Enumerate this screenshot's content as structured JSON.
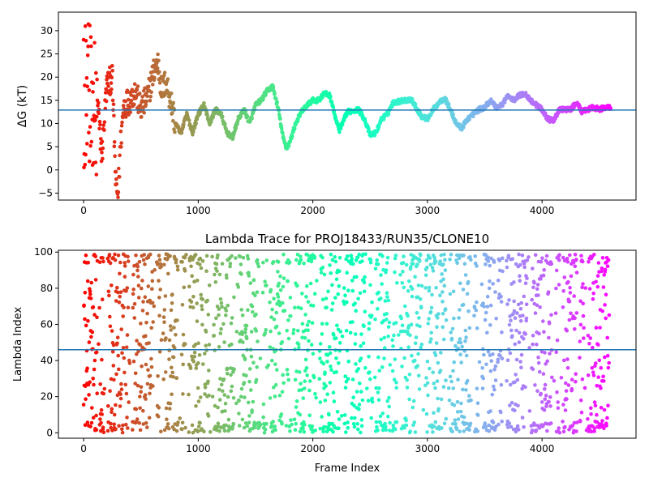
{
  "chart_data": [
    {
      "type": "scatter",
      "title": "",
      "xlabel": "",
      "ylabel": "ΔG (kT)",
      "xlim": [
        -220,
        4820
      ],
      "ylim": [
        -6.5,
        34
      ],
      "xticks": [
        0,
        1000,
        2000,
        3000,
        4000
      ],
      "yticks": [
        -5,
        0,
        5,
        10,
        15,
        20,
        25,
        30
      ],
      "hline": 12.9,
      "hline_color": "#1f77b4",
      "colormap": "rainbow",
      "x_count": 4600,
      "grid": false,
      "trend_points": [
        [
          0,
          30
        ],
        [
          20,
          2
        ],
        [
          40,
          25
        ],
        [
          60,
          10
        ],
        [
          80,
          18
        ],
        [
          100,
          15
        ],
        [
          130,
          12
        ],
        [
          160,
          3
        ],
        [
          200,
          18
        ],
        [
          250,
          20
        ],
        [
          280,
          -3
        ],
        [
          300,
          -5.5
        ],
        [
          320,
          5
        ],
        [
          350,
          14
        ],
        [
          400,
          15
        ],
        [
          450,
          17
        ],
        [
          500,
          13
        ],
        [
          560,
          16
        ],
        [
          620,
          22
        ],
        [
          650,
          23
        ],
        [
          680,
          17
        ],
        [
          720,
          19
        ],
        [
          760,
          15
        ],
        [
          800,
          10
        ],
        [
          850,
          8
        ],
        [
          900,
          12
        ],
        [
          950,
          8
        ],
        [
          1000,
          12
        ],
        [
          1050,
          14
        ],
        [
          1100,
          10
        ],
        [
          1150,
          13
        ],
        [
          1200,
          12
        ],
        [
          1250,
          8
        ],
        [
          1300,
          7
        ],
        [
          1350,
          11
        ],
        [
          1400,
          13
        ],
        [
          1450,
          10
        ],
        [
          1500,
          14
        ],
        [
          1550,
          15
        ],
        [
          1600,
          17
        ],
        [
          1650,
          18
        ],
        [
          1700,
          13
        ],
        [
          1740,
          7
        ],
        [
          1770,
          4.7
        ],
        [
          1800,
          6
        ],
        [
          1850,
          10
        ],
        [
          1900,
          12.5
        ],
        [
          1950,
          14
        ],
        [
          2000,
          15
        ],
        [
          2050,
          15
        ],
        [
          2100,
          16.5
        ],
        [
          2150,
          16
        ],
        [
          2200,
          11
        ],
        [
          2230,
          8.5
        ],
        [
          2260,
          10
        ],
        [
          2300,
          12.5
        ],
        [
          2400,
          13
        ],
        [
          2450,
          11
        ],
        [
          2500,
          7.5
        ],
        [
          2550,
          8
        ],
        [
          2600,
          11
        ],
        [
          2650,
          12
        ],
        [
          2700,
          14.5
        ],
        [
          2800,
          15
        ],
        [
          2860,
          15.2
        ],
        [
          2900,
          13.5
        ],
        [
          2950,
          11.5
        ],
        [
          3000,
          11
        ],
        [
          3050,
          13
        ],
        [
          3100,
          14.5
        ],
        [
          3150,
          15.5
        ],
        [
          3200,
          13
        ],
        [
          3250,
          10
        ],
        [
          3300,
          9
        ],
        [
          3350,
          11
        ],
        [
          3400,
          12
        ],
        [
          3450,
          13
        ],
        [
          3500,
          13.5
        ],
        [
          3550,
          15
        ],
        [
          3600,
          13.5
        ],
        [
          3650,
          14
        ],
        [
          3700,
          16
        ],
        [
          3750,
          15
        ],
        [
          3800,
          16
        ],
        [
          3850,
          16.5
        ],
        [
          3900,
          15
        ],
        [
          3950,
          14
        ],
        [
          4000,
          13
        ],
        [
          4050,
          11
        ],
        [
          4100,
          10.5
        ],
        [
          4150,
          13
        ],
        [
          4200,
          13
        ],
        [
          4250,
          13
        ],
        [
          4300,
          14.5
        ],
        [
          4350,
          12.5
        ],
        [
          4400,
          13
        ],
        [
          4450,
          13.5
        ],
        [
          4500,
          13
        ],
        [
          4550,
          13.5
        ],
        [
          4600,
          13.5
        ]
      ]
    },
    {
      "type": "scatter",
      "title": "Lambda Trace for PROJ18433/RUN35/CLONE10",
      "xlabel": "Frame Index",
      "ylabel": "Lambda Index",
      "xlim": [
        -220,
        4820
      ],
      "ylim": [
        -3,
        101
      ],
      "xticks": [
        0,
        1000,
        2000,
        3000,
        4000
      ],
      "yticks": [
        0,
        20,
        40,
        60,
        80,
        100
      ],
      "hline": 46,
      "hline_color": "#1f77b4",
      "colormap": "rainbow",
      "x_count": 4600,
      "value_range": [
        0,
        99
      ],
      "grid": false
    }
  ]
}
